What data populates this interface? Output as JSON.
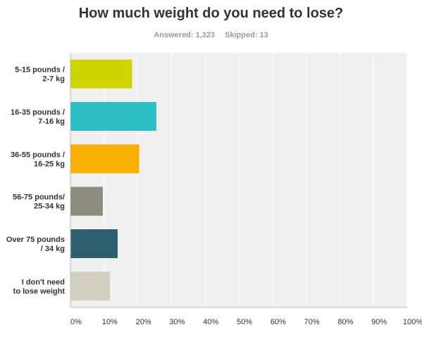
{
  "header": {
    "title": "How much weight do you need to lose?",
    "answered": "Answered: 1,323",
    "skipped": "Skipped: 13"
  },
  "chart_data": {
    "type": "bar",
    "orientation": "horizontal",
    "categories": [
      [
        "5-15 pounds /",
        "2-7 kg"
      ],
      [
        "16-35 pounds /",
        "7-16 kg"
      ],
      [
        "36-55 pounds /",
        "16-25 kg"
      ],
      [
        "56-75 pounds/",
        "25-34 kg"
      ],
      [
        "Over 75 pounds",
        "/ 34 kg"
      ],
      [
        "I don't need",
        "to lose weight"
      ]
    ],
    "values": [
      18.2,
      25.4,
      20.3,
      9.5,
      13.9,
      11.6
    ],
    "colors": [
      "#cdd400",
      "#2bbfc4",
      "#f9b000",
      "#8c8c7c",
      "#2d5f6e",
      "#d2cfc0"
    ],
    "xlim": [
      0,
      100
    ],
    "xticks": [
      "0%",
      "10%",
      "20%",
      "30%",
      "40%",
      "50%",
      "60%",
      "70%",
      "80%",
      "90%",
      "100%"
    ],
    "grid": true,
    "plot_background": "#f0f0f0"
  }
}
